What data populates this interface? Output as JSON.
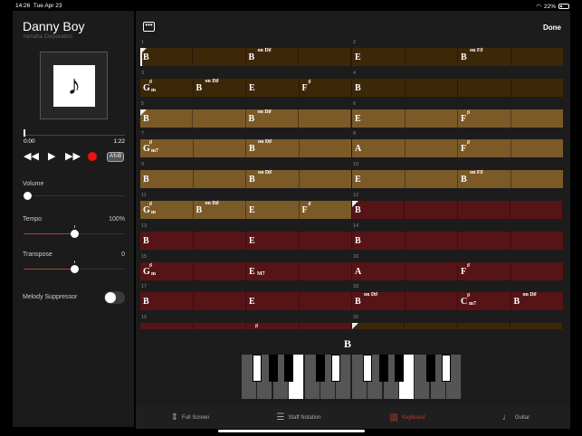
{
  "status": {
    "time": "14:26",
    "date": "Tue Apr 23",
    "battery": "22%",
    "battery_level": 0.22
  },
  "song": {
    "title": "Danny Boy",
    "artist": "Yamaha Corporation",
    "artwork_icon": "music-note-icon"
  },
  "playback": {
    "elapsed": "0:00",
    "duration": "1:22",
    "progress": 0,
    "ab_label": "A↻B"
  },
  "volume": {
    "label": "Volume",
    "level": 0
  },
  "tempo": {
    "label": "Tempo",
    "value": "100%",
    "level": 0.5
  },
  "transpose": {
    "label": "Transpose",
    "value": "0",
    "level": 0.5
  },
  "melody_suppressor": {
    "label": "Melody Suppressor",
    "on": false
  },
  "header": {
    "more_label": "•••",
    "done_label": "Done"
  },
  "colors": {
    "intro": "#3d2709",
    "verse": "#7b5a28",
    "chorus": "#561417",
    "accent": "#c0392b"
  },
  "bars": [
    {
      "n": "1",
      "section": "intro",
      "mark": true,
      "playhead": true,
      "beats": [
        {
          "root": "B"
        },
        {},
        {
          "root": "B",
          "bass": "on D♯"
        },
        {}
      ]
    },
    {
      "n": "2",
      "section": "intro",
      "beats": [
        {
          "root": "E"
        },
        {},
        {
          "root": "B",
          "bass": "on F♯"
        },
        {}
      ]
    },
    {
      "n": "3",
      "section": "intro",
      "beats": [
        {
          "root": "G",
          "acc": "♯",
          "qual": "m"
        },
        {
          "root": "B",
          "bass": "on D♯"
        },
        {
          "root": "E"
        },
        {
          "root": "F",
          "acc": "♯"
        }
      ]
    },
    {
      "n": "4",
      "section": "intro",
      "beats": [
        {
          "root": "B"
        },
        {},
        {},
        {}
      ]
    },
    {
      "n": "5",
      "section": "verse",
      "mark": true,
      "beats": [
        {
          "root": "B"
        },
        {},
        {
          "root": "B",
          "bass": "on D♯"
        },
        {}
      ]
    },
    {
      "n": "6",
      "section": "verse",
      "beats": [
        {
          "root": "E"
        },
        {},
        {
          "root": "F",
          "acc": "♯"
        },
        {}
      ]
    },
    {
      "n": "7",
      "section": "verse",
      "beats": [
        {
          "root": "G",
          "acc": "♯",
          "qual": "m7"
        },
        {},
        {
          "root": "B",
          "bass": "on D♯"
        },
        {}
      ]
    },
    {
      "n": "8",
      "section": "verse",
      "beats": [
        {
          "root": "A"
        },
        {},
        {
          "root": "F",
          "acc": "♯"
        },
        {}
      ]
    },
    {
      "n": "9",
      "section": "verse",
      "beats": [
        {
          "root": "B"
        },
        {},
        {
          "root": "B",
          "bass": "on D♯"
        },
        {}
      ]
    },
    {
      "n": "10",
      "section": "verse",
      "beats": [
        {
          "root": "E"
        },
        {},
        {
          "root": "B",
          "bass": "on F♯"
        },
        {}
      ]
    },
    {
      "n": "11",
      "section": "verse",
      "beats": [
        {
          "root": "G",
          "acc": "♯",
          "qual": "m"
        },
        {
          "root": "B",
          "bass": "on D♯"
        },
        {
          "root": "E"
        },
        {
          "root": "F",
          "acc": "♯"
        }
      ]
    },
    {
      "n": "12",
      "section": "chorus",
      "mark": true,
      "beats": [
        {
          "root": "B"
        },
        {},
        {},
        {}
      ]
    },
    {
      "n": "13",
      "section": "chorus",
      "beats": [
        {
          "root": "B"
        },
        {},
        {
          "root": "E"
        },
        {}
      ]
    },
    {
      "n": "14",
      "section": "chorus",
      "beats": [
        {
          "root": "B"
        },
        {},
        {},
        {}
      ]
    },
    {
      "n": "15",
      "section": "chorus",
      "beats": [
        {
          "root": "G",
          "acc": "♯",
          "qual": "m"
        },
        {},
        {
          "root": "E",
          "qual": "M7"
        },
        {}
      ]
    },
    {
      "n": "16",
      "section": "chorus",
      "beats": [
        {
          "root": "A"
        },
        {},
        {
          "root": "F",
          "acc": "♯"
        },
        {}
      ]
    },
    {
      "n": "17",
      "section": "chorus",
      "beats": [
        {
          "root": "B"
        },
        {},
        {
          "root": "E"
        },
        {}
      ]
    },
    {
      "n": "18",
      "section": "chorus",
      "beats": [
        {
          "root": "B",
          "bass": "on D♯"
        },
        {},
        {
          "root": "C",
          "acc": "♯",
          "qual": "m7"
        },
        {
          "root": "B",
          "bass": "on D♯"
        }
      ]
    },
    {
      "n": "19",
      "section": "chorus",
      "beats": [
        {},
        {},
        {
          "acc": "♯"
        },
        {}
      ]
    },
    {
      "n": "20",
      "section": "intro",
      "mark": true,
      "beats": [
        {},
        {},
        {},
        {}
      ]
    }
  ],
  "keyboard": {
    "chord": "B",
    "white_keys": [
      "F",
      "G",
      "A",
      "B",
      "C",
      "D",
      "E",
      "F",
      "G",
      "A",
      "B",
      "C",
      "D",
      "E"
    ],
    "pressed": [
      "B",
      "D♯",
      "F♯"
    ]
  },
  "tabs": [
    {
      "label": "Full Screen",
      "icon": "full-screen-icon",
      "active": false
    },
    {
      "label": "Staff Notation",
      "icon": "staff-notation-icon",
      "active": false
    },
    {
      "label": "Keyboard",
      "icon": "keyboard-icon",
      "active": true
    },
    {
      "label": "Guitar",
      "icon": "guitar-icon",
      "active": false
    }
  ]
}
